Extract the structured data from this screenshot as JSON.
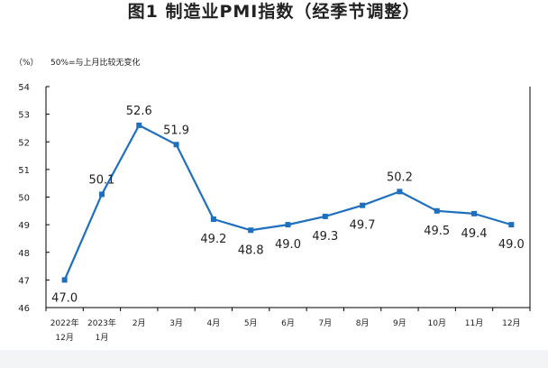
{
  "title": "图1  制造业PMI指数（经季节调整）",
  "chart_data": {
    "type": "line",
    "unit_label": "（%）",
    "reference_note": "50%=与上月比较无变化",
    "categories": [
      [
        "2022年",
        "12月"
      ],
      [
        "2023年",
        "1月"
      ],
      [
        "2月"
      ],
      [
        "3月"
      ],
      [
        "4月"
      ],
      [
        "5月"
      ],
      [
        "6月"
      ],
      [
        "7月"
      ],
      [
        "8月"
      ],
      [
        "9月"
      ],
      [
        "10月"
      ],
      [
        "11月"
      ],
      [
        "12月"
      ]
    ],
    "values": [
      47.0,
      50.1,
      52.6,
      51.9,
      49.2,
      48.8,
      49.0,
      49.3,
      49.7,
      50.2,
      49.5,
      49.4,
      49.0
    ],
    "value_labels": [
      "47.0",
      "50.1",
      "52.6",
      "51.9",
      "49.2",
      "48.8",
      "49.0",
      "49.3",
      "49.7",
      "50.2",
      "49.5",
      "49.4",
      "49.0"
    ],
    "ylim": [
      46,
      54
    ],
    "yticks": [
      "46",
      "47",
      "48",
      "49",
      "50",
      "51",
      "52",
      "53",
      "54"
    ],
    "line_color": "#1f6fbf",
    "grid": false
  }
}
